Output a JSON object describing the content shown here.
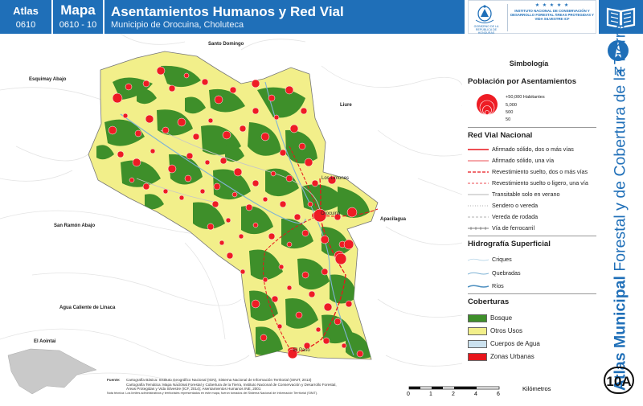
{
  "header": {
    "atlas_label": "Atlas",
    "atlas_number": "0610",
    "map_label": "Mapa",
    "map_number": "0610 - 10",
    "title": "Asentamientos Humanos y Red Vial",
    "subtitle": "Municipio de Orocuina, Choluteca"
  },
  "logos": {
    "gov_caption": "GOBIERNO DE LA REPÚBLICA DE HONDURAS",
    "stars": "★ ★ ★ ★ ★",
    "institute": "INSTITUTO NACIONAL DE CONSERVACIÓN Y DESARROLLO FORESTAL ÁREAS PROTEGIDAS Y VIDA SILVESTRE ICF",
    "book_icon": "open-book-icon",
    "emblem_icon": "honduras-coat-of-arms-icon"
  },
  "side_title": {
    "bold": "Atlas Municipal",
    "rest": " Forestal y de Cobertura de la Tierra",
    "north": "N",
    "code": "10A"
  },
  "map": {
    "places": {
      "santo_domingo": "Santo Domingo",
      "esquimay": "Esquimay Abajo",
      "liure": "Liure",
      "san_ramon": "San Ramón Abajo",
      "apacilagua": "Apacilagua",
      "agua_caliente": "Agua Caliente de Linaca",
      "el_aointai": "El Aointai",
      "los_limones": "Los Limones",
      "orocuina": "Orocuina",
      "el_paso": "El Paso"
    },
    "colors": {
      "bosque": "#3e8f2a",
      "otros_usos": "#f2ef8a",
      "agua": "#cbe1ee",
      "urbano": "#e8151b",
      "settlement": "#ee1c24",
      "outside": "#ffffff"
    }
  },
  "legend": {
    "title": "Simbología",
    "population": {
      "title": "Población por Asentamientos",
      "labels": [
        "+50,000 Habitantes",
        "5,000",
        "500",
        "50"
      ]
    },
    "roads": {
      "title": "Red Vial Nacional",
      "items": [
        "Afirmado sólido, dos o más vías",
        "Afirmado sólido, una vía",
        "Revestimiento suelto, dos o más vías",
        "Revestimiento suelto o ligero, una vía",
        "Transitable solo en verano",
        "Sendero o vereda",
        "Vereda de rodada",
        "Vía de ferrocarril"
      ]
    },
    "hydro": {
      "title": "Hidrografía Superficial",
      "items": [
        "Criques",
        "Quebradas",
        "Ríos"
      ]
    },
    "cover": {
      "title": "Coberturas",
      "items": [
        "Bosque",
        "Otros Usos",
        "Cuerpos de Agua",
        "Zonas Urbanas"
      ]
    }
  },
  "source": {
    "label": "Fuente:",
    "lines": [
      "Cartografía Básica: Instituto Geográfico Nacional (IGN), Sistema Nacional de Información Territorial (SINIT, 2013)",
      "Cartografía Temática: Mapa Nacional Forestal y Cobertura de la Tierra, Instituto Nacional de Conservación y Desarrollo Forestal,",
      "Áreas Protegidas y Vida Silvestre (ICF, 2014); Asentamientos Humanos INE, 2001"
    ],
    "note": "Nota técnica: Los límites administrativos y territoriales representados en este mapa, fueron tomados del Sistema Nacional de Información Territorial (SINIT)."
  },
  "scale": {
    "ticks": [
      "0",
      "1",
      "2",
      "4",
      "6"
    ],
    "unit": "Kilómetros"
  }
}
